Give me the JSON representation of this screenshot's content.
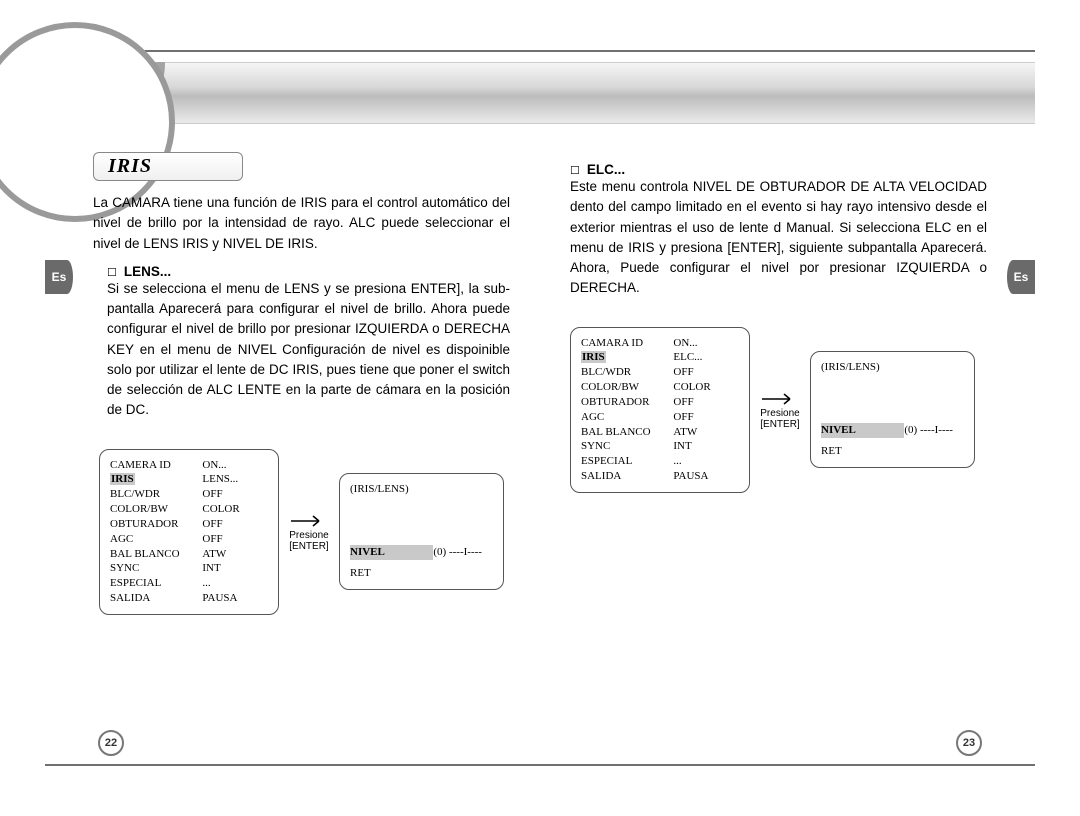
{
  "lang_tab": "Es",
  "page_left_num": "22",
  "page_right_num": "23",
  "section_title": "IRIS",
  "intro_text": "La CAMARA tiene una función de IRIS para el control automático del nivel de brillo por la intensidad de rayo. ALC puede seleccionar el nivel de LENS IRIS y NIVEL DE IRIS.",
  "lens_heading": "LENS...",
  "lens_body": "Si se selecciona el menu de LENS y se presiona ENTER], la sub-pantalla Aparecerá para configurar el nivel de brillo. Ahora puede configurar el nivel de brillo por presionar IZQUIERDA o DERECHA KEY en el menu de NIVEL Configuración de nivel es dispoinible solo por utilizar el lente de DC IRIS, pues tiene que poner el switch de selección de ALC LENTE en la parte de cámara en la posición de DC.",
  "elc_heading": "ELC...",
  "elc_body": "Este menu controla NIVEL DE OBTURADOR DE ALTA VELOCIDAD dento del campo limitado en el evento si hay rayo intensivo desde el exterior mientras el uso de lente d Manual. Si selecciona ELC en el menu de IRIS y presiona [ENTER], siguiente subpantalla Aparecerá. Ahora, Puede configurar el nivel por presionar IZQUIERDA o DERECHA.",
  "arrow_caption_top": "Presione",
  "arrow_caption_bottom": "[ENTER]",
  "menu_lens_left": {
    "rows": [
      [
        "CAMERA ID",
        "ON..."
      ],
      [
        "IRIS",
        "LENS..."
      ],
      [
        "BLC/WDR",
        "OFF"
      ],
      [
        "COLOR/BW",
        "COLOR"
      ],
      [
        "OBTURADOR",
        "OFF"
      ],
      [
        "AGC",
        "OFF"
      ],
      [
        "BAL BLANCO",
        "ATW"
      ],
      [
        "SYNC",
        "INT"
      ],
      [
        "ESPECIAL",
        "..."
      ],
      [
        "SALIDA",
        "PAUSA"
      ]
    ],
    "highlight_row": 1
  },
  "menu_lens_right": {
    "title": "(IRIS/LENS)",
    "nivel_label": "NIVEL",
    "nivel_value": "(0) ----I----",
    "ret": "RET"
  },
  "menu_elc_left": {
    "rows": [
      [
        "CAMARA ID",
        "ON..."
      ],
      [
        "IRIS",
        "ELC..."
      ],
      [
        "BLC/WDR",
        "OFF"
      ],
      [
        "COLOR/BW",
        "COLOR"
      ],
      [
        "OBTURADOR",
        "OFF"
      ],
      [
        "AGC",
        "OFF"
      ],
      [
        "BAL BLANCO",
        "ATW"
      ],
      [
        "SYNC",
        "INT"
      ],
      [
        "ESPECIAL",
        "..."
      ],
      [
        "SALIDA",
        "PAUSA"
      ]
    ],
    "highlight_row": 1
  },
  "menu_elc_right": {
    "title": "(IRIS/LENS)",
    "nivel_label": "NIVEL",
    "nivel_value": "(0) ----I----",
    "ret": "RET"
  },
  "colors": {
    "border": "#707070",
    "highlight": "#c9c9c9",
    "tab_bg": "#6a6a6a"
  }
}
